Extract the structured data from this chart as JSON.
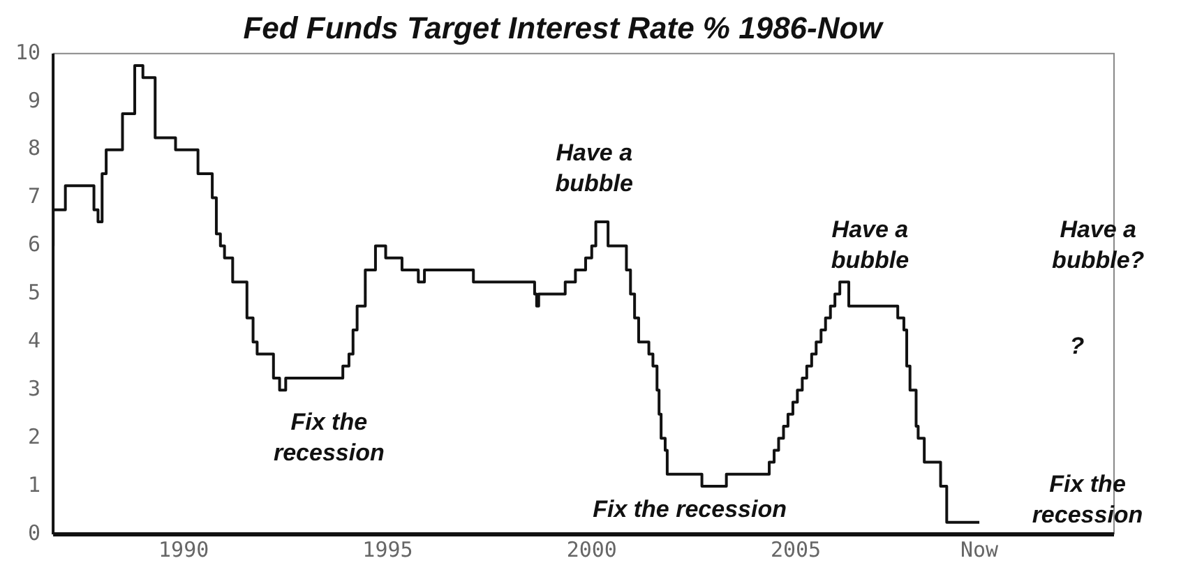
{
  "chart_data": {
    "type": "step",
    "title": "Fed Funds Target Interest Rate % 1986-Now",
    "xlim": [
      1986.8,
      2012.8
    ],
    "xticks": [
      1990,
      1995,
      2000,
      2005,
      {
        "value": 2009.5,
        "label": "Now"
      }
    ],
    "ylim": [
      0,
      10
    ],
    "yticks": [
      0,
      1,
      2,
      3,
      4,
      5,
      6,
      7,
      8,
      9,
      10
    ],
    "grid": false,
    "legend": false,
    "marker": "none",
    "line_style": "solid",
    "series": [
      {
        "color": "#111111",
        "x": [
          1986.8,
          1987.1,
          1987.8,
          1987.9,
          1988.0,
          1988.1,
          1988.5,
          1988.8,
          1989.0,
          1989.3,
          1989.8,
          1990.35,
          1990.7,
          1990.8,
          1990.9,
          1991.0,
          1991.2,
          1991.55,
          1991.7,
          1991.8,
          1992.2,
          1992.35,
          1992.5,
          1993.9,
          1994.05,
          1994.15,
          1994.25,
          1994.45,
          1994.7,
          1994.95,
          1995.35,
          1995.75,
          1995.9,
          1997.1,
          1998.6,
          1998.65,
          1998.7,
          1999.35,
          1999.6,
          1999.85,
          2000.0,
          2000.1,
          2000.4,
          2000.85,
          2000.95,
          2001.05,
          2001.15,
          2001.4,
          2001.5,
          2001.6,
          2001.65,
          2001.7,
          2001.8,
          2001.85,
          2002.7,
          2003.3,
          2004.35,
          2004.47,
          2004.58,
          2004.7,
          2004.81,
          2004.93,
          2005.04,
          2005.16,
          2005.27,
          2005.39,
          2005.5,
          2005.62,
          2005.73,
          2005.85,
          2005.96,
          2006.08,
          2006.19,
          2006.3,
          2007.5,
          2007.65,
          2007.72,
          2007.8,
          2007.95,
          2008.0,
          2008.1,
          2008.15,
          2008.55,
          2008.7,
          2008.8,
          2008.9,
          2009.5
        ],
        "values": [
          6.0,
          6.75,
          7.25,
          6.75,
          6.5,
          7.5,
          8.0,
          8.75,
          9.75,
          9.5,
          8.25,
          8.0,
          7.5,
          7.0,
          6.25,
          6.0,
          5.75,
          5.25,
          4.5,
          4.0,
          3.75,
          3.25,
          3.0,
          3.25,
          3.5,
          3.75,
          4.25,
          4.75,
          5.5,
          6.0,
          5.75,
          5.5,
          5.25,
          5.5,
          5.25,
          5.0,
          4.75,
          5.0,
          5.25,
          5.5,
          5.75,
          6.0,
          6.5,
          6.0,
          5.5,
          5.0,
          4.5,
          4.0,
          3.75,
          3.5,
          3.0,
          2.5,
          2.0,
          1.75,
          1.25,
          1.0,
          1.25,
          1.5,
          1.75,
          2.0,
          2.25,
          2.5,
          2.75,
          3.0,
          3.25,
          3.5,
          3.75,
          4.0,
          4.25,
          4.5,
          4.75,
          5.0,
          5.25,
          5.25,
          4.75,
          4.5,
          4.25,
          3.5,
          3.0,
          2.25,
          2.0,
          2.0,
          1.5,
          1.0,
          0.25,
          0.25,
          0.25
        ]
      }
    ],
    "annotations": [
      "Fix the\nrecession",
      "Have a\nbubble",
      "Fix the recession",
      "Have a\nbubble",
      "Have a\nbubble?",
      "?",
      "Fix the\nrecession"
    ]
  }
}
